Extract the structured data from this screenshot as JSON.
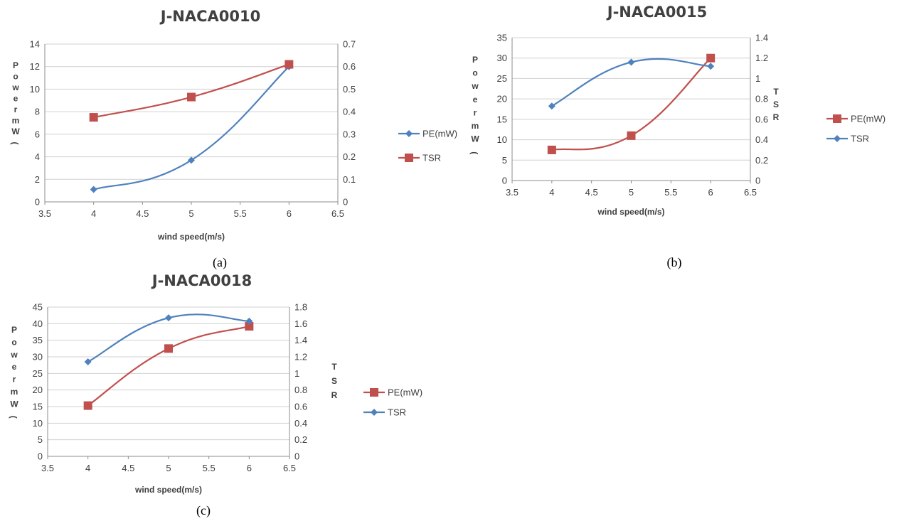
{
  "chart_data": [
    {
      "type": "line",
      "title": "J-NACA0010",
      "caption": "(a)",
      "xlabel": "wind speed(m/s)",
      "ylabel": "Power(mW)",
      "y2label": "",
      "x": [
        4,
        5,
        6
      ],
      "xlim": [
        3.5,
        6.5
      ],
      "xticks": [
        "3.5",
        "4",
        "4.5",
        "5",
        "5.5",
        "6",
        "6.5"
      ],
      "ylim": [
        0,
        14
      ],
      "yticks": [
        "0",
        "2",
        "4",
        "6",
        "8",
        "10",
        "12",
        "14"
      ],
      "y2lim": [
        0,
        0.7
      ],
      "y2ticks": [
        "0",
        "0.1",
        "0.2",
        "0.3",
        "0.4",
        "0.5",
        "0.6",
        "0.7"
      ],
      "grid": true,
      "legend_position": "right",
      "series": [
        {
          "name": "PE(mW)",
          "axis": "left",
          "marker": "diamond",
          "color": "#4f81bd",
          "values": [
            1.1,
            3.7,
            12.0
          ]
        },
        {
          "name": "TSR",
          "axis": "right",
          "marker": "square",
          "color": "#c0504d",
          "values": [
            0.375,
            0.465,
            0.61
          ]
        }
      ]
    },
    {
      "type": "line",
      "title": "J-NACA0015",
      "caption": "(b)",
      "xlabel": "wind speed(m/s)",
      "ylabel": "Power(mW)",
      "y2label": "TSR",
      "x": [
        4,
        5,
        6
      ],
      "xlim": [
        3.5,
        6.5
      ],
      "xticks": [
        "3.5",
        "4",
        "4.5",
        "5",
        "5.5",
        "6",
        "6.5"
      ],
      "ylim": [
        0,
        35
      ],
      "yticks": [
        "0",
        "5",
        "10",
        "15",
        "20",
        "25",
        "30",
        "35"
      ],
      "y2lim": [
        0,
        1.4
      ],
      "y2ticks": [
        "0",
        "0.2",
        "0.4",
        "0.6",
        "0.8",
        "1",
        "1.2",
        "1.4"
      ],
      "grid": true,
      "legend_position": "right",
      "series": [
        {
          "name": "PE(mW)",
          "axis": "left",
          "marker": "square",
          "color": "#c0504d",
          "values": [
            7.5,
            11.0,
            30.0
          ]
        },
        {
          "name": "TSR",
          "axis": "right",
          "marker": "diamond",
          "color": "#4f81bd",
          "values": [
            0.73,
            1.16,
            1.12
          ]
        }
      ]
    },
    {
      "type": "line",
      "title": "J-NACA0018",
      "caption": "(c)",
      "xlabel": "wind speed(m/s)",
      "ylabel": "Power(mW)",
      "y2label": "TSR",
      "x": [
        4,
        5,
        6
      ],
      "xlim": [
        3.5,
        6.5
      ],
      "xticks": [
        "3.5",
        "4",
        "4.5",
        "5",
        "5.5",
        "6",
        "6.5"
      ],
      "ylim": [
        0,
        45
      ],
      "yticks": [
        "0",
        "5",
        "10",
        "15",
        "20",
        "25",
        "30",
        "35",
        "40",
        "45"
      ],
      "y2lim": [
        0,
        1.8
      ],
      "y2ticks": [
        "0",
        "0.2",
        "0.4",
        "0.6",
        "0.8",
        "1",
        "1.2",
        "1.4",
        "1.6",
        "1.8"
      ],
      "grid": true,
      "legend_position": "right",
      "series": [
        {
          "name": "PE(mW)",
          "axis": "left",
          "marker": "square",
          "color": "#c0504d",
          "values": [
            15.3,
            32.5,
            39.2
          ]
        },
        {
          "name": "TSR",
          "axis": "right",
          "marker": "diamond",
          "color": "#4f81bd",
          "values": [
            1.14,
            1.67,
            1.63
          ]
        }
      ]
    }
  ]
}
